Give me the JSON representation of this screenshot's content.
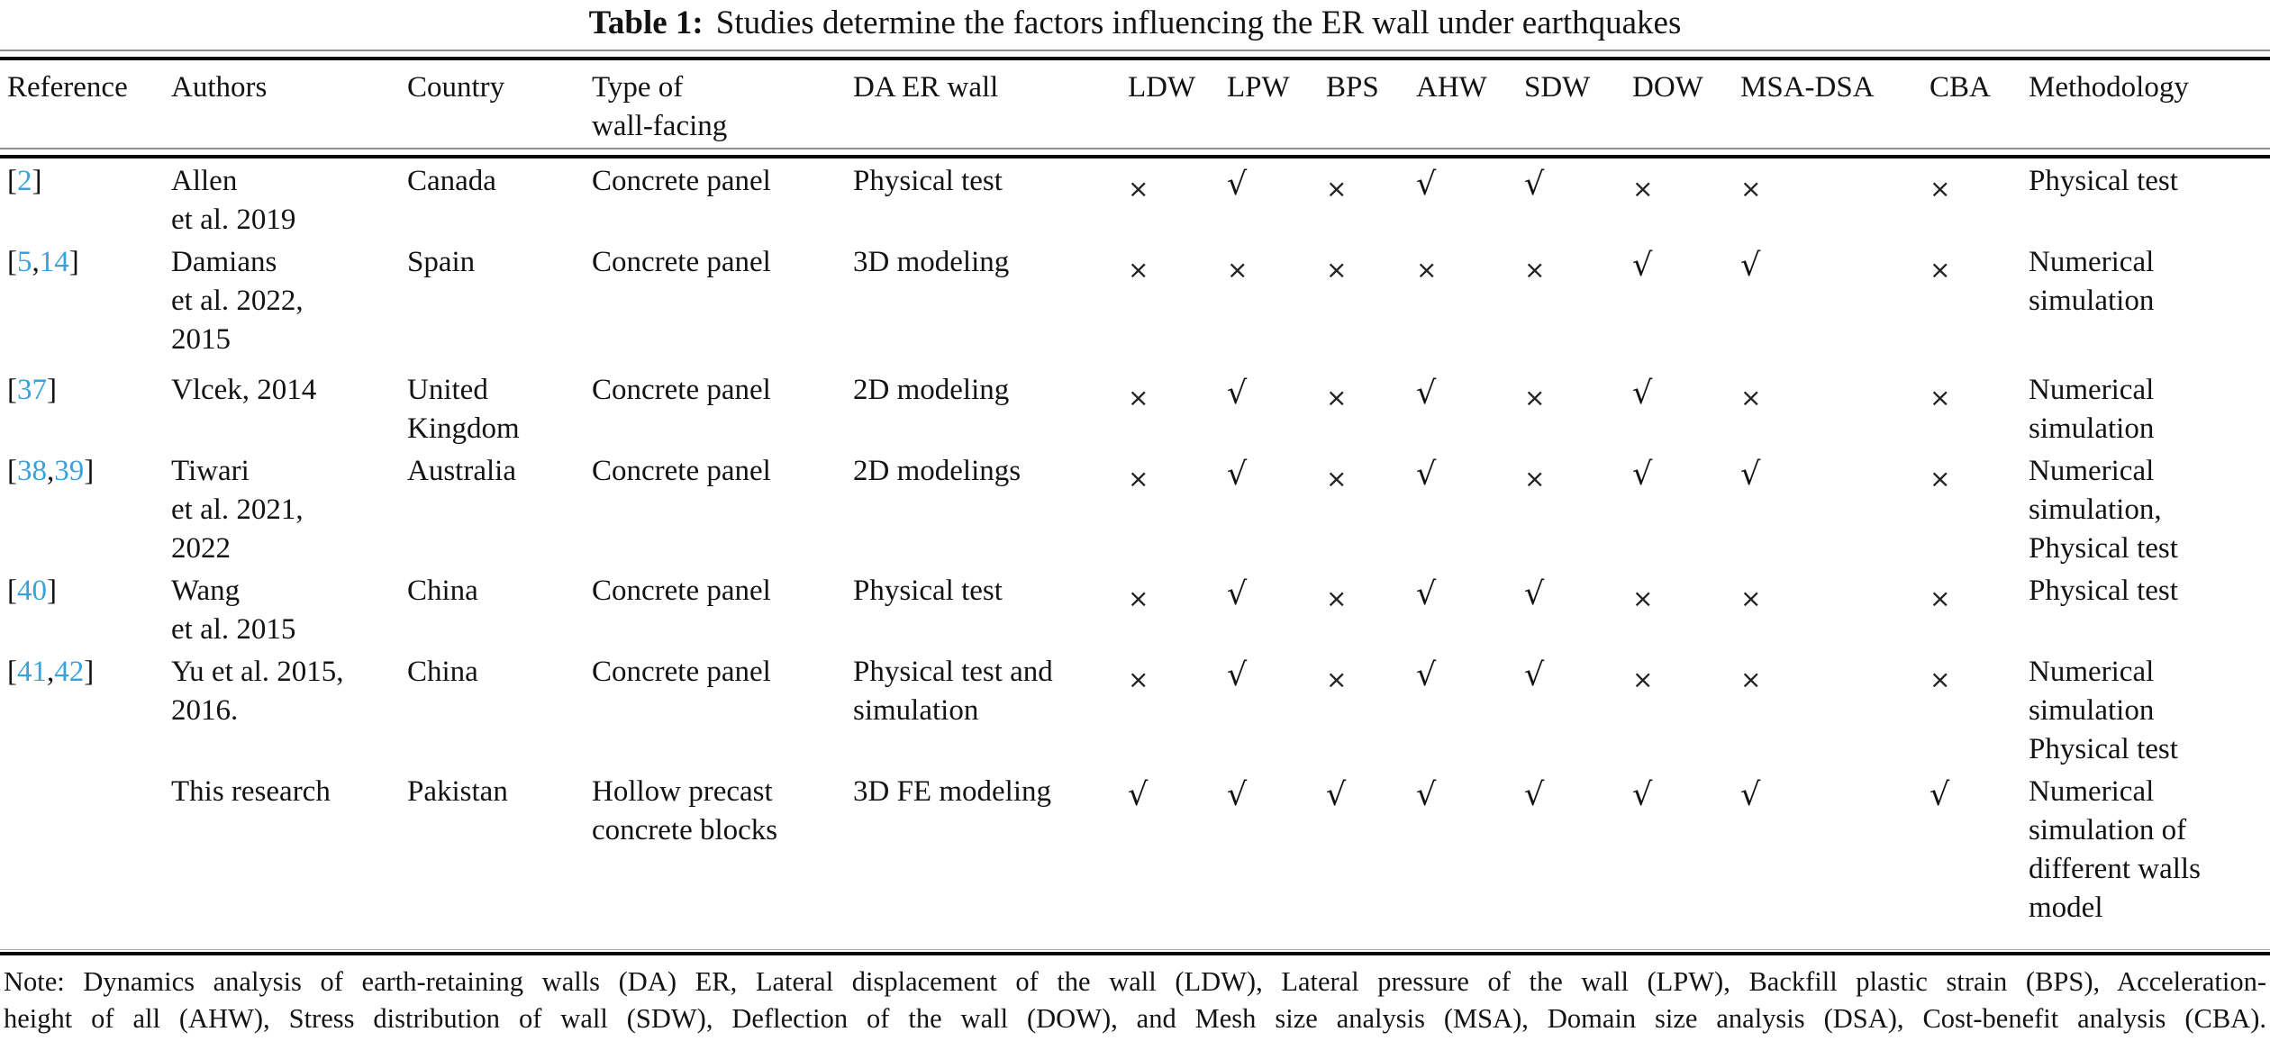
{
  "title": {
    "label": "Table 1:",
    "caption": "Studies determine the factors influencing the ER wall under earthquakes"
  },
  "link_color": "#3BA1D9",
  "marks_legend": {
    "yes": "√",
    "no": "×"
  },
  "table": {
    "columns": [
      "Reference",
      "Authors",
      "Country",
      [
        "Type of",
        "wall-facing"
      ],
      "DA ER wall",
      "LDW",
      "LPW",
      "BPS",
      "AHW",
      "SDW",
      "DOW",
      "MSA-DSA",
      "CBA",
      "Methodology"
    ],
    "rows": [
      {
        "ref_parts": [
          {
            "text": "[",
            "color": "#131313"
          },
          {
            "text": "2",
            "color": "#3BA1D9"
          },
          {
            "text": "]",
            "color": "#131313"
          }
        ],
        "authors": [
          "Allen",
          "et al. 2019"
        ],
        "country": [
          "Canada"
        ],
        "type": [
          "Concrete panel"
        ],
        "da": [
          "Physical test"
        ],
        "marks": [
          "×",
          "√",
          "×",
          "√",
          "√",
          "×",
          "×",
          "×"
        ],
        "methodology": [
          "Physical test"
        ]
      },
      {
        "ref_parts": [
          {
            "text": "[",
            "color": "#131313"
          },
          {
            "text": "5",
            "color": "#3BA1D9"
          },
          {
            "text": ",",
            "color": "#131313"
          },
          {
            "text": "14",
            "color": "#3BA1D9"
          },
          {
            "text": "]",
            "color": "#131313"
          }
        ],
        "authors": [
          "Damians",
          "et al. 2022,",
          "2015"
        ],
        "country": [
          "Spain"
        ],
        "type": [
          "Concrete panel"
        ],
        "da": [
          "3D modeling"
        ],
        "marks": [
          "×",
          "×",
          "×",
          "×",
          "×",
          "√",
          "√",
          "×"
        ],
        "methodology": [
          "Numerical",
          "simulation"
        ]
      },
      {
        "ref_parts": [
          {
            "text": "[",
            "color": "#131313"
          },
          {
            "text": "37",
            "color": "#3BA1D9"
          },
          {
            "text": "]",
            "color": "#131313"
          }
        ],
        "authors": [
          "Vlcek, 2014"
        ],
        "country": [
          "United",
          "Kingdom"
        ],
        "type": [
          "Concrete panel"
        ],
        "da": [
          "2D modeling"
        ],
        "marks": [
          "×",
          "√",
          "×",
          "√",
          "×",
          "√",
          "×",
          "×"
        ],
        "methodology": [
          "Numerical",
          "simulation"
        ]
      },
      {
        "ref_parts": [
          {
            "text": "[",
            "color": "#131313"
          },
          {
            "text": "38",
            "color": "#3BA1D9"
          },
          {
            "text": ",",
            "color": "#131313"
          },
          {
            "text": "39",
            "color": "#3BA1D9"
          },
          {
            "text": "]",
            "color": "#131313"
          }
        ],
        "authors": [
          "Tiwari",
          "et al. 2021,",
          "2022"
        ],
        "country": [
          "Australia"
        ],
        "type": [
          "Concrete panel"
        ],
        "da": [
          "2D modelings"
        ],
        "marks": [
          "×",
          "√",
          "×",
          "√",
          "×",
          "√",
          "√",
          "×"
        ],
        "methodology": [
          "Numerical",
          "simulation,",
          "Physical test"
        ]
      },
      {
        "ref_parts": [
          {
            "text": "[",
            "color": "#131313"
          },
          {
            "text": "40",
            "color": "#3BA1D9"
          },
          {
            "text": "]",
            "color": "#131313"
          }
        ],
        "authors": [
          "Wang",
          "et al. 2015"
        ],
        "country": [
          "China"
        ],
        "type": [
          "Concrete panel"
        ],
        "da": [
          "Physical test"
        ],
        "marks": [
          "×",
          "√",
          "×",
          "√",
          "√",
          "×",
          "×",
          "×"
        ],
        "methodology": [
          "Physical test"
        ]
      },
      {
        "ref_parts": [
          {
            "text": "[",
            "color": "#131313"
          },
          {
            "text": "41",
            "color": "#3BA1D9"
          },
          {
            "text": ",",
            "color": "#131313"
          },
          {
            "text": "42",
            "color": "#3BA1D9"
          },
          {
            "text": "]",
            "color": "#131313"
          }
        ],
        "authors": [
          "Yu et al. 2015,",
          "2016."
        ],
        "country": [
          "China"
        ],
        "type": [
          "Concrete panel"
        ],
        "da": [
          "Physical test and",
          "simulation"
        ],
        "marks": [
          "×",
          "√",
          "×",
          "√",
          "√",
          "×",
          "×",
          "×"
        ],
        "methodology": [
          "Numerical",
          "simulation",
          "Physical test"
        ]
      },
      {
        "ref_parts": [],
        "authors": [
          "This research"
        ],
        "country": [
          "Pakistan"
        ],
        "type": [
          "Hollow precast",
          "concrete blocks"
        ],
        "da": [
          "3D FE modeling"
        ],
        "marks": [
          "√",
          "√",
          "√",
          "√",
          "√",
          "√",
          "√",
          "√"
        ],
        "methodology": [
          "Numerical",
          "simulation of",
          "different walls",
          "model"
        ]
      }
    ]
  },
  "note": [
    "Note: Dynamics analysis of earth-retaining walls (DA) ER, Lateral displacement of the wall (LDW), Lateral pressure of the wall (LPW), Backfill plastic strain (BPS), Acceleration-",
    "height of all (AHW), Stress distribution of wall (SDW), Deflection of the wall (DOW), and Mesh size analysis (MSA), Domain size analysis (DSA), Cost-benefit analysis (CBA)."
  ]
}
